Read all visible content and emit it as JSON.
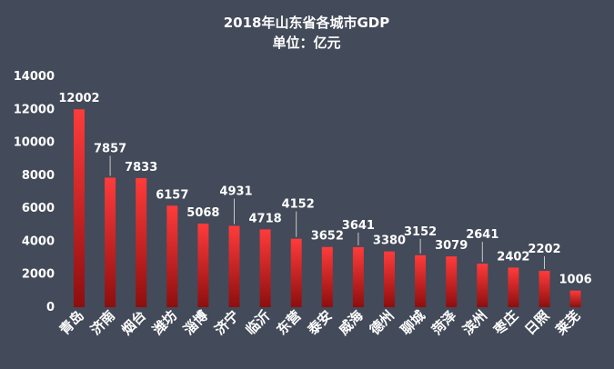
{
  "chart_data": {
    "type": "bar",
    "title": "2018年山东省各城市GDP",
    "subtitle": "单位：亿元",
    "xlabel": "",
    "ylabel": "",
    "categories": [
      "青岛",
      "济南",
      "烟台",
      "潍坊",
      "淄博",
      "济宁",
      "临沂",
      "东营",
      "泰安",
      "威海",
      "德州",
      "聊城",
      "菏泽",
      "滨州",
      "枣庄",
      "日照",
      "莱芜"
    ],
    "values": [
      12002,
      7857,
      7833,
      6157,
      5068,
      4931,
      4718,
      4152,
      3652,
      3641,
      3380,
      3152,
      3079,
      2641,
      2402,
      2202,
      1006
    ],
    "ylim": [
      0,
      14000
    ],
    "yticks": [
      0,
      2000,
      4000,
      6000,
      8000,
      10000,
      12000,
      14000
    ],
    "grid": false,
    "legend": "none",
    "colors": {
      "background": "#434a59",
      "bar_top": "#ff3b3b",
      "bar_bottom": "#8e0e0e",
      "text": "#ffffff"
    }
  }
}
